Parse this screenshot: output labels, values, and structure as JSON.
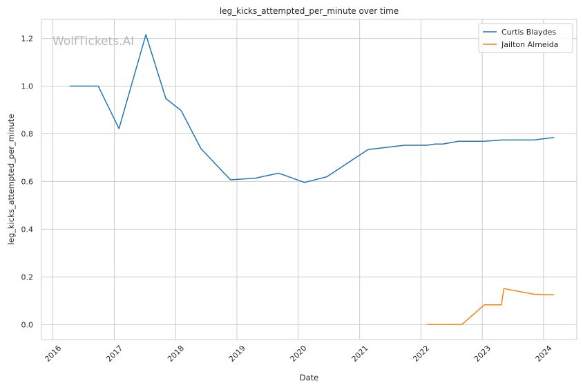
{
  "chart_data": {
    "type": "line",
    "title": "leg_kicks_attempted_per_minute over time",
    "xlabel": "Date",
    "ylabel": "leg_kicks_attempted_per_minute",
    "watermark": "WolfTickets.AI",
    "xlim": [
      "2015-10-25",
      "2024-07-17"
    ],
    "ylim": [
      -0.063,
      1.28
    ],
    "x_ticks": [
      "2016",
      "2017",
      "2018",
      "2019",
      "2020",
      "2021",
      "2022",
      "2023",
      "2024"
    ],
    "y_ticks": [
      "0.0",
      "0.2",
      "0.4",
      "0.6",
      "0.8",
      "1.0",
      "1.2"
    ],
    "grid": true,
    "legend_position": "top-right",
    "series": [
      {
        "name": "Curtis Blaydes",
        "color": "#1f77b4",
        "points": [
          [
            "2016-04-10",
            1.0
          ],
          [
            "2016-09-27",
            1.0
          ],
          [
            "2017-01-29",
            0.822
          ],
          [
            "2017-07-08",
            1.216
          ],
          [
            "2017-11-04",
            0.948
          ],
          [
            "2018-02-03",
            0.897
          ],
          [
            "2018-06-01",
            0.738
          ],
          [
            "2018-11-24",
            0.607
          ],
          [
            "2019-04-20",
            0.614
          ],
          [
            "2019-09-07",
            0.635
          ],
          [
            "2020-02-08",
            0.596
          ],
          [
            "2020-06-20",
            0.62
          ],
          [
            "2021-02-20",
            0.734
          ],
          [
            "2021-09-25",
            0.752
          ],
          [
            "2022-02-05",
            0.752
          ],
          [
            "2022-03-26",
            0.757
          ],
          [
            "2022-05-12",
            0.757
          ],
          [
            "2022-08-12",
            0.769
          ],
          [
            "2023-01-13",
            0.769
          ],
          [
            "2023-04-29",
            0.774
          ],
          [
            "2023-11-05",
            0.774
          ],
          [
            "2024-03-04",
            0.785
          ]
        ]
      },
      {
        "name": "Jailton Almeida",
        "color": "#ff7f0e",
        "points": [
          [
            "2022-02-05",
            0.0
          ],
          [
            "2022-09-01",
            0.0
          ],
          [
            "2023-01-14",
            0.083
          ],
          [
            "2023-04-25",
            0.083
          ],
          [
            "2023-05-10",
            0.151
          ],
          [
            "2023-11-05",
            0.127
          ],
          [
            "2024-03-04",
            0.125
          ]
        ]
      }
    ]
  }
}
